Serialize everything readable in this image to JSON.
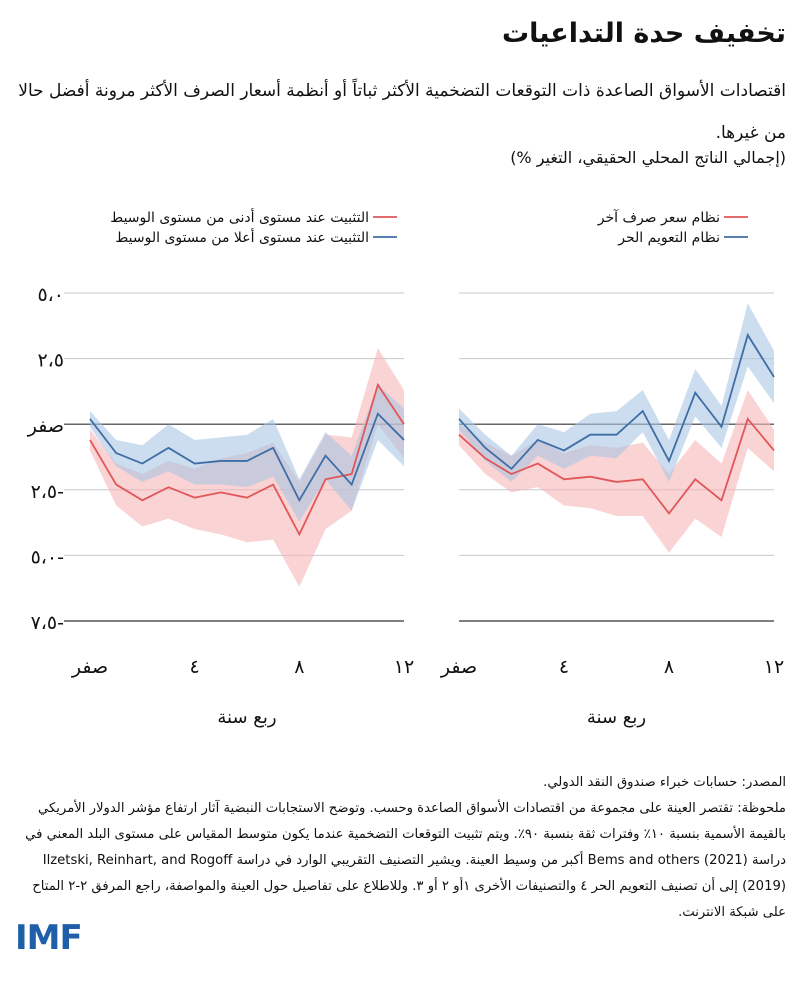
{
  "title": "تخفيف حدة التداعيات",
  "subtitle": "اقتصادات الأسواق الصاعدة ذات التوقعات التضخمية الأكثر ثباتاً أو أنظمة أسعار الصرف الأكثر مرونة أفضل حالا من غيرها.",
  "unit": "(إجمالي الناتج المحلي الحقيقي، التغير %)",
  "colors": {
    "red": "#e15759",
    "red_band": "#f7b6b7",
    "blue": "#3f6ea6",
    "blue_band": "#a9c7e3",
    "grid": "#c8c8c8",
    "zero": "#333333"
  },
  "chart_data": [
    {
      "type": "line",
      "position": "left",
      "legend": [
        "التثبيت عند مستوى أدنى من مستوى الوسيط",
        "التثبيت عند مستوى أعلا من مستوى الوسيط"
      ],
      "x": [
        0,
        1,
        2,
        3,
        4,
        5,
        6,
        7,
        8,
        9,
        10,
        11,
        12
      ],
      "xticks": [
        0,
        4,
        8,
        12
      ],
      "xtick_labels": [
        "صفر",
        "٤",
        "٨",
        "١٢"
      ],
      "xlabel": "ربع سنة",
      "ylim": [
        -7.5,
        5.0
      ],
      "yticks": [
        5.0,
        2.5,
        0,
        -2.5,
        -5.0,
        -7.5
      ],
      "ytick_labels": [
        "٥،٠",
        "٢،٥",
        "صفر",
        "٢،٥-",
        "٥،٠-",
        "٧،٥-"
      ],
      "series": [
        {
          "name": "التثبيت عند مستوى أدنى من مستوى الوسيط",
          "color_key": "red",
          "values": [
            -0.6,
            -2.3,
            -2.9,
            -2.4,
            -2.8,
            -2.6,
            -2.8,
            -2.3,
            -4.2,
            -2.1,
            -1.9,
            1.5,
            0.0
          ],
          "lower": [
            -1.0,
            -3.1,
            -3.9,
            -3.6,
            -4.0,
            -4.2,
            -4.5,
            -4.4,
            -6.2,
            -4.0,
            -3.3,
            0.0,
            -1.3
          ],
          "upper": [
            -0.2,
            -1.5,
            -1.9,
            -1.4,
            -1.7,
            -1.3,
            -1.1,
            -0.7,
            -2.2,
            -0.4,
            -0.5,
            2.9,
            1.3
          ]
        },
        {
          "name": "التثبيت عند مستوى أعلا من مستوى الوسيط",
          "color_key": "blue",
          "values": [
            0.2,
            -1.1,
            -1.5,
            -0.9,
            -1.5,
            -1.4,
            -1.4,
            -0.9,
            -2.9,
            -1.2,
            -2.3,
            0.4,
            -0.6
          ],
          "lower": [
            -0.1,
            -1.6,
            -2.2,
            -1.8,
            -2.3,
            -2.3,
            -2.4,
            -2.0,
            -3.7,
            -2.1,
            -3.3,
            -0.6,
            -1.6
          ],
          "upper": [
            0.5,
            -0.6,
            -0.8,
            0.0,
            -0.6,
            -0.5,
            -0.4,
            0.2,
            -2.1,
            -0.3,
            -1.2,
            1.5,
            0.6
          ]
        }
      ]
    },
    {
      "type": "line",
      "position": "right",
      "legend": [
        "نظام سعر صرف آخر",
        "نظام التعويم الحر"
      ],
      "x": [
        0,
        1,
        2,
        3,
        4,
        5,
        6,
        7,
        8,
        9,
        10,
        11,
        12
      ],
      "xticks": [
        0,
        4,
        8,
        12
      ],
      "xtick_labels": [
        "صفر",
        "٤",
        "٨",
        "١٢"
      ],
      "xlabel": "ربع سنة",
      "ylim": [
        -7.5,
        5.0
      ],
      "series": [
        {
          "name": "نظام سعر صرف آخر",
          "color_key": "red",
          "values": [
            -0.4,
            -1.3,
            -1.9,
            -1.5,
            -2.1,
            -2.0,
            -2.2,
            -2.1,
            -3.4,
            -2.1,
            -2.9,
            0.2,
            -1.0
          ],
          "lower": [
            -0.8,
            -1.9,
            -2.6,
            -2.4,
            -3.1,
            -3.2,
            -3.5,
            -3.5,
            -4.9,
            -3.6,
            -4.3,
            -0.9,
            -1.8
          ],
          "upper": [
            0.0,
            -0.7,
            -1.2,
            -0.6,
            -1.1,
            -0.8,
            -0.9,
            -0.7,
            -1.9,
            -0.6,
            -1.5,
            1.3,
            -0.2
          ]
        },
        {
          "name": "نظام التعويم الحر",
          "color_key": "blue",
          "values": [
            0.2,
            -0.9,
            -1.7,
            -0.6,
            -1.0,
            -0.4,
            -0.4,
            0.5,
            -1.4,
            1.2,
            -0.1,
            3.4,
            1.8
          ],
          "lower": [
            -0.2,
            -1.4,
            -2.2,
            -1.2,
            -1.7,
            -1.2,
            -1.3,
            -0.3,
            -2.2,
            0.3,
            -0.9,
            2.2,
            0.8
          ],
          "upper": [
            0.6,
            -0.4,
            -1.2,
            0.0,
            -0.3,
            0.4,
            0.5,
            1.3,
            -0.6,
            2.1,
            0.7,
            4.6,
            2.8
          ]
        }
      ]
    }
  ],
  "notes": {
    "source": "المصدر: حسابات خبراء صندوق النقد الدولي.",
    "note": "ملحوظة: تقتصر العينة على مجموعة من اقتصادات الأسواق الصاعدة وحسب. وتوضح الاستجابات النبضية آثار ارتفاع مؤشر الدولار الأمريكي بالقيمة الأسمية بنسبة ١٠٪ وفترات ثقة بنسبة ٩٠٪. ويتم تثبيت التوقعات التضخمية عندما يكون متوسط المقياس على مستوى البلد المعني في دراسة Bems and others (2021) أكبر من وسيط العينة. ويشير التصنيف التقريبي الوارد في دراسة Ilzetski, Reinhart, and Rogoff (2019) إلى أن تصنيف التعويم الحر ٤ والتصنيفات الأخرى ١أو ٢ أو ٣. وللاطلاع على تفاصيل حول العينة والمواصفة، راجع المرفق ٢-٢ المتاح على شبكة الانترنت."
  },
  "logo": "IMF"
}
